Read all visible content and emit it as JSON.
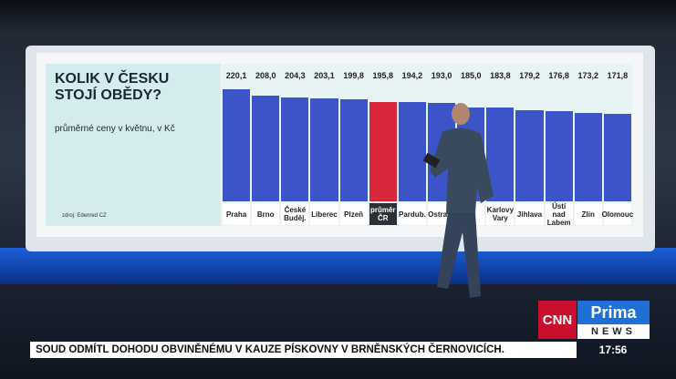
{
  "chart_data": {
    "type": "bar",
    "title": "KOLIK V ČESKU STOJÍ OBĚDY?",
    "subtitle": "průměrné ceny v květnu, v Kč",
    "source": "zdroj: Edenred CZ",
    "categories": [
      "Praha",
      "Brno",
      "České Buděj.",
      "Liberec",
      "Plzeň",
      "průměr ČR",
      "Pardub.",
      "Ostrava",
      null,
      "Karlovy Vary",
      "Jihlava",
      "Ústí nad Labem",
      "Zlín",
      "Olomouc"
    ],
    "values": [
      220.1,
      208.0,
      204.3,
      203.1,
      199.8,
      195.8,
      194.2,
      193.0,
      185.0,
      183.8,
      179.2,
      176.8,
      173.2,
      171.8
    ],
    "value_labels": [
      "220,1",
      "208,0",
      "204,3",
      "203,1",
      "199,8",
      "195,8",
      "194,2",
      "193,0",
      "185,0",
      "183,8",
      "179,2",
      "176,8",
      "173,2",
      "171,8"
    ],
    "colors": [
      "#3b55c9",
      "#3b55c9",
      "#3b55c9",
      "#3b55c9",
      "#3b55c9",
      "#d8263a",
      "#3b55c9",
      "#3b55c9",
      "#3b55c9",
      "#3b55c9",
      "#3b55c9",
      "#3b55c9",
      "#3b55c9",
      "#3b55c9"
    ]
  },
  "ticker": {
    "headline": "SOUD ODMÍTL DOHODU OBVINĚNÉMU V KAUZE PÍSKOVNY V BRNĚNSKÝCH ČERNOVICÍCH.",
    "time": "17:56"
  },
  "logo": {
    "cnn": "CNN",
    "prima": "Prima",
    "news": "NEWS"
  }
}
